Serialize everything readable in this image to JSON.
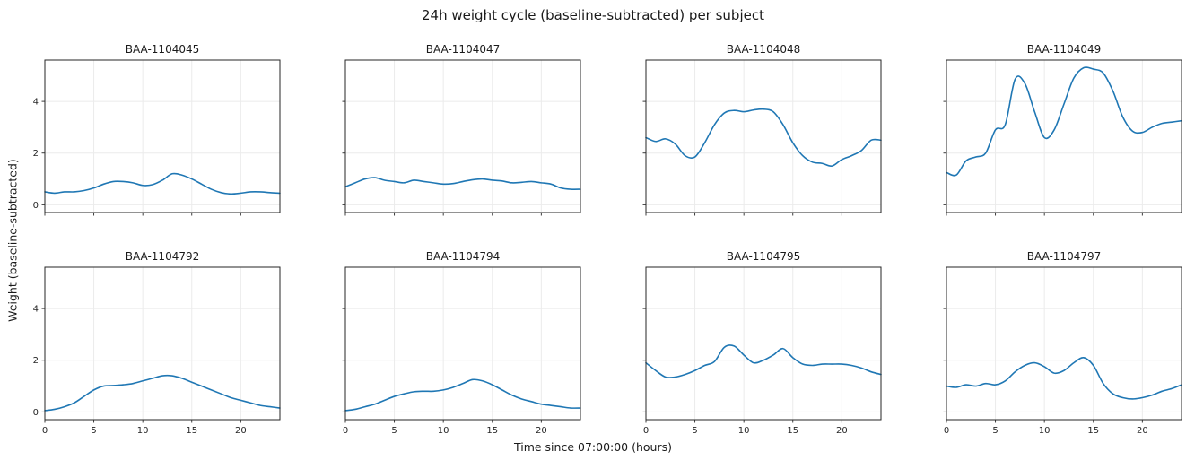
{
  "chart_data": {
    "type": "line",
    "title": "24h weight cycle (baseline-subtracted) per subject",
    "xlabel": "Time since 07:00:00 (hours)",
    "ylabel": "Weight (baseline-subtracted)",
    "xlim": [
      0,
      24
    ],
    "ylim": [
      -0.3,
      5.6
    ],
    "xticks": [
      0,
      5,
      10,
      15,
      20
    ],
    "yticks": [
      0,
      2,
      4
    ],
    "grid": true,
    "legend": "none",
    "line_color": "#1f77b4",
    "x": [
      0,
      1,
      2,
      3,
      4,
      5,
      6,
      7,
      8,
      9,
      10,
      11,
      12,
      13,
      14,
      15,
      16,
      17,
      18,
      19,
      20,
      21,
      22,
      23,
      24
    ],
    "subplots": [
      {
        "subject": "BAA-1104045",
        "values": [
          0.5,
          0.45,
          0.5,
          0.5,
          0.55,
          0.65,
          0.8,
          0.9,
          0.9,
          0.85,
          0.75,
          0.78,
          0.95,
          1.2,
          1.15,
          1.0,
          0.8,
          0.6,
          0.47,
          0.42,
          0.45,
          0.5,
          0.5,
          0.47,
          0.45
        ]
      },
      {
        "subject": "BAA-1104047",
        "values": [
          0.7,
          0.85,
          1.0,
          1.05,
          0.95,
          0.9,
          0.85,
          0.95,
          0.9,
          0.85,
          0.8,
          0.82,
          0.9,
          0.97,
          1.0,
          0.95,
          0.92,
          0.85,
          0.87,
          0.9,
          0.85,
          0.8,
          0.65,
          0.6,
          0.6
        ]
      },
      {
        "subject": "BAA-1104048",
        "values": [
          2.6,
          2.45,
          2.55,
          2.35,
          1.9,
          1.85,
          2.4,
          3.1,
          3.55,
          3.65,
          3.6,
          3.67,
          3.7,
          3.6,
          3.1,
          2.4,
          1.9,
          1.65,
          1.6,
          1.5,
          1.75,
          1.9,
          2.1,
          2.5,
          2.5
        ]
      },
      {
        "subject": "BAA-1104049",
        "values": [
          1.25,
          1.15,
          1.7,
          1.85,
          2.0,
          2.9,
          3.1,
          4.85,
          4.7,
          3.6,
          2.6,
          2.9,
          3.9,
          4.9,
          5.3,
          5.25,
          5.1,
          4.4,
          3.4,
          2.85,
          2.8,
          3.0,
          3.15,
          3.2,
          3.25
        ]
      },
      {
        "subject": "BAA-1104792",
        "values": [
          0.05,
          0.1,
          0.2,
          0.35,
          0.6,
          0.85,
          1.0,
          1.02,
          1.05,
          1.1,
          1.2,
          1.3,
          1.4,
          1.4,
          1.3,
          1.15,
          1.0,
          0.85,
          0.7,
          0.55,
          0.45,
          0.35,
          0.25,
          0.2,
          0.15
        ]
      },
      {
        "subject": "BAA-1104794",
        "values": [
          0.05,
          0.1,
          0.2,
          0.3,
          0.45,
          0.6,
          0.7,
          0.78,
          0.8,
          0.8,
          0.85,
          0.95,
          1.1,
          1.25,
          1.2,
          1.05,
          0.85,
          0.65,
          0.5,
          0.4,
          0.3,
          0.25,
          0.2,
          0.15,
          0.15
        ]
      },
      {
        "subject": "BAA-1104795",
        "values": [
          1.9,
          1.6,
          1.35,
          1.35,
          1.45,
          1.6,
          1.8,
          1.95,
          2.5,
          2.55,
          2.2,
          1.9,
          2.0,
          2.2,
          2.45,
          2.1,
          1.85,
          1.8,
          1.85,
          1.85,
          1.85,
          1.8,
          1.7,
          1.55,
          1.45
        ]
      },
      {
        "subject": "BAA-1104797",
        "values": [
          1.0,
          0.95,
          1.05,
          1.0,
          1.1,
          1.05,
          1.2,
          1.55,
          1.8,
          1.9,
          1.75,
          1.5,
          1.6,
          1.9,
          2.1,
          1.8,
          1.1,
          0.7,
          0.55,
          0.5,
          0.55,
          0.65,
          0.8,
          0.9,
          1.05
        ]
      }
    ]
  }
}
